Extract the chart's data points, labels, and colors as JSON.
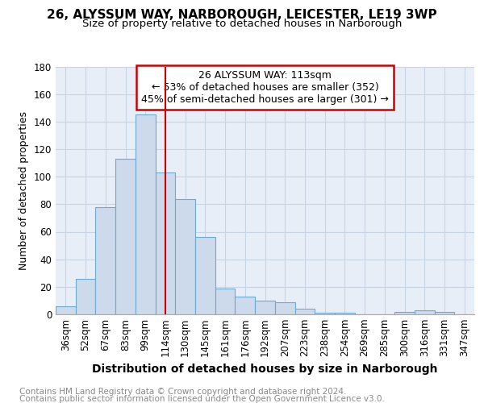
{
  "title1": "26, ALYSSUM WAY, NARBOROUGH, LEICESTER, LE19 3WP",
  "title2": "Size of property relative to detached houses in Narborough",
  "xlabel": "Distribution of detached houses by size in Narborough",
  "ylabel": "Number of detached properties",
  "footer1": "Contains HM Land Registry data © Crown copyright and database right 2024.",
  "footer2": "Contains public sector information licensed under the Open Government Licence v3.0.",
  "categories": [
    "36sqm",
    "52sqm",
    "67sqm",
    "83sqm",
    "99sqm",
    "114sqm",
    "130sqm",
    "145sqm",
    "161sqm",
    "176sqm",
    "192sqm",
    "207sqm",
    "223sqm",
    "238sqm",
    "254sqm",
    "269sqm",
    "285sqm",
    "300sqm",
    "316sqm",
    "331sqm",
    "347sqm"
  ],
  "values": [
    6,
    26,
    78,
    113,
    145,
    103,
    84,
    56,
    19,
    13,
    10,
    9,
    4,
    1,
    1,
    0,
    0,
    2,
    3,
    2,
    0
  ],
  "bar_color": "#ccdaeb",
  "bar_edge_color": "#6aaad4",
  "bar_linewidth": 0.8,
  "highlight_index": 5,
  "highlight_line_color": "#cc0000",
  "annotation_text": "26 ALYSSUM WAY: 113sqm\n← 53% of detached houses are smaller (352)\n45% of semi-detached houses are larger (301) →",
  "annotation_box_color": "#cc0000",
  "ylim": [
    0,
    180
  ],
  "yticks": [
    0,
    20,
    40,
    60,
    80,
    100,
    120,
    140,
    160,
    180
  ],
  "grid_color": "#c8d4e4",
  "background_color": "#e8eef8",
  "title1_fontsize": 11,
  "title2_fontsize": 9.5,
  "xlabel_fontsize": 10,
  "ylabel_fontsize": 9,
  "tick_fontsize": 8.5,
  "annotation_fontsize": 9,
  "footer_fontsize": 7.5,
  "footer_color": "#888888"
}
